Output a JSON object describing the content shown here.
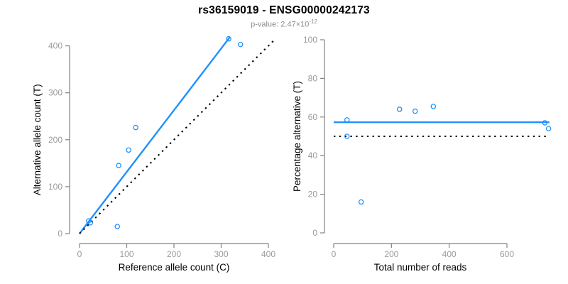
{
  "header": {
    "title": "rs36159019 - ENSG00000242173",
    "pvalue_label": "p-value: ",
    "pvalue_base": "2.47×10",
    "pvalue_exponent": "-12"
  },
  "colors": {
    "accent_blue": "#1E90FF",
    "axis_gray": "#828282",
    "tick_label_gray": "#9a9a9a",
    "axis_title_black": "#000000",
    "dotted_black": "#000000",
    "subtitle_gray": "#8c8c8c"
  },
  "chart_data": [
    {
      "type": "scatter",
      "name": "allele-counts-scatter",
      "xlabel": "Reference allele count (C)",
      "ylabel": "Alternative allele count (T)",
      "xticks": [
        0,
        100,
        200,
        300,
        400
      ],
      "yticks": [
        0,
        100,
        200,
        300,
        400
      ],
      "xlim": [
        0,
        420
      ],
      "ylim": [
        0,
        420
      ],
      "grid": false,
      "legend": "none",
      "points": [
        [
          19,
          27
        ],
        [
          23,
          23
        ],
        [
          80,
          15
        ],
        [
          83,
          145
        ],
        [
          104,
          178
        ],
        [
          119,
          226
        ],
        [
          316,
          415
        ],
        [
          341,
          403
        ]
      ],
      "lines": [
        {
          "name": "fitted-ratio-line",
          "style": "solid",
          "color": "#1E90FF",
          "x1": 0,
          "y1": 0,
          "x2": 318,
          "y2": 418
        },
        {
          "name": "identity-line",
          "style": "dotted",
          "color": "#000000",
          "x1": 0,
          "y1": 0,
          "x2": 414,
          "y2": 414
        }
      ]
    },
    {
      "type": "scatter",
      "name": "percentage-vs-reads-scatter",
      "xlabel": "Total number of reads",
      "ylabel": "Percentage alternative (T)",
      "xticks": [
        0,
        200,
        400,
        600
      ],
      "yticks": [
        0,
        20,
        40,
        60,
        80,
        100
      ],
      "xlim": [
        0,
        750
      ],
      "ylim": [
        0,
        100
      ],
      "grid": false,
      "legend": "none",
      "points": [
        [
          46,
          58.5
        ],
        [
          46,
          50
        ],
        [
          95,
          16
        ],
        [
          228,
          64
        ],
        [
          282,
          63
        ],
        [
          345,
          65.5
        ],
        [
          731,
          57
        ],
        [
          744,
          54
        ]
      ],
      "lines": [
        {
          "name": "mean-percentage-line",
          "style": "solid",
          "color": "#1E90FF",
          "x1": 0,
          "y1": 57.3,
          "x2": 747,
          "y2": 57.3
        },
        {
          "name": "fifty-percent-line",
          "style": "dotted",
          "color": "#000000",
          "x1": 0,
          "y1": 50,
          "x2": 747,
          "y2": 50
        }
      ]
    }
  ]
}
